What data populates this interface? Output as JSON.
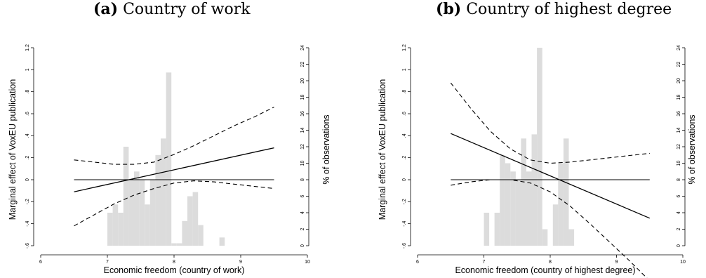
{
  "panels": [
    {
      "letter": "(a)",
      "name": "Country of work"
    },
    {
      "letter": "(b)",
      "name": "Country of highest degree"
    }
  ],
  "chart_data": [
    {
      "type": "line",
      "title": "(a) Country of work",
      "xlabel": "Economic freedom (country of work)",
      "ylabel": "Marginal effect of VoxEU publication",
      "y2label": "% of observations",
      "xlim": [
        6,
        10
      ],
      "ylim": [
        -0.6,
        1.2
      ],
      "y2lim": [
        0,
        24
      ],
      "x_ticks": [
        6,
        7,
        8,
        9,
        10
      ],
      "y_ticks": [
        -0.6,
        -0.4,
        -0.2,
        0,
        0.2,
        0.4,
        0.6,
        0.8,
        1,
        1.2
      ],
      "y_tick_labels": [
        "-.6",
        "-.4",
        "-.2",
        "0",
        ".2",
        ".4",
        ".6",
        ".8",
        "1",
        "1.2"
      ],
      "y2_ticks": [
        0,
        2,
        4,
        6,
        8,
        10,
        12,
        14,
        16,
        18,
        20,
        22,
        24
      ],
      "series": [
        {
          "style": "solid",
          "x": [
            6.5,
            9.5
          ],
          "y": [
            -0.11,
            0.29
          ]
        },
        {
          "style": "dashed",
          "x": [
            6.5,
            6.8,
            7.1,
            7.4,
            7.7,
            8.0,
            8.3,
            8.6,
            8.9,
            9.2,
            9.5
          ],
          "y": [
            -0.42,
            -0.32,
            -0.22,
            -0.14,
            -0.08,
            -0.03,
            -0.01,
            -0.02,
            -0.04,
            -0.06,
            -0.08
          ]
        },
        {
          "style": "dashed",
          "x": [
            6.5,
            6.8,
            7.1,
            7.4,
            7.7,
            8.0,
            8.3,
            8.6,
            8.9,
            9.2,
            9.5
          ],
          "y": [
            0.18,
            0.16,
            0.14,
            0.14,
            0.16,
            0.23,
            0.31,
            0.4,
            0.49,
            0.57,
            0.66
          ]
        },
        {
          "style": "reference",
          "x": [
            6.5,
            9.5
          ],
          "y": [
            0,
            0
          ]
        }
      ],
      "histogram": {
        "bin_width": 0.08,
        "bins_start": [
          7.0,
          7.08,
          7.16,
          7.24,
          7.32,
          7.4,
          7.48,
          7.56,
          7.64,
          7.72,
          7.8,
          7.88,
          7.96,
          8.04,
          8.12,
          8.2,
          8.28,
          8.36,
          8.44,
          8.52,
          8.6,
          8.68
        ],
        "percent": [
          4,
          5,
          4,
          12,
          8,
          9,
          8,
          5,
          8,
          11,
          13,
          21,
          0.3,
          0.3,
          3,
          6,
          6.5,
          2.5,
          0,
          0,
          0,
          1
        ]
      }
    },
    {
      "type": "line",
      "title": "(b) Country of highest degree",
      "xlabel": "Economic freedom (country of highest degree)",
      "ylabel": "Marginal effect of VoxEU publication",
      "y2label": "% of observations",
      "xlim": [
        6,
        10
      ],
      "ylim": [
        -0.6,
        1.2
      ],
      "y2lim": [
        0,
        24
      ],
      "x_ticks": [
        6,
        7,
        8,
        9,
        10
      ],
      "y_ticks": [
        -0.6,
        -0.4,
        -0.2,
        0,
        0.2,
        0.4,
        0.6,
        0.8,
        1,
        1.2
      ],
      "y_tick_labels": [
        "-.6",
        "-.4",
        "-.2",
        "0",
        ".2",
        ".4",
        ".6",
        ".8",
        "1",
        "1.2"
      ],
      "y2_ticks": [
        0,
        2,
        4,
        6,
        8,
        10,
        12,
        14,
        16,
        18,
        20,
        22,
        24
      ],
      "series": [
        {
          "style": "solid",
          "x": [
            6.5,
            9.5
          ],
          "y": [
            0.42,
            -0.35
          ]
        },
        {
          "style": "dashed",
          "x": [
            6.5,
            6.8,
            7.1,
            7.4,
            7.7,
            8.0,
            8.3,
            8.6,
            8.9,
            9.2,
            9.5
          ],
          "y": [
            -0.05,
            -0.02,
            0,
            0,
            -0.03,
            -0.11,
            -0.24,
            -0.4,
            -0.57,
            -0.74,
            -0.92
          ]
        },
        {
          "style": "dashed",
          "x": [
            6.5,
            6.8,
            7.1,
            7.4,
            7.7,
            8.0,
            8.3,
            8.6,
            8.9,
            9.2,
            9.5
          ],
          "y": [
            0.88,
            0.65,
            0.44,
            0.28,
            0.18,
            0.15,
            0.16,
            0.18,
            0.2,
            0.22,
            0.24
          ]
        },
        {
          "style": "reference",
          "x": [
            6.5,
            9.5
          ],
          "y": [
            0,
            0
          ]
        }
      ],
      "histogram": {
        "bin_width": 0.08,
        "bins_start": [
          7.0,
          7.08,
          7.16,
          7.24,
          7.32,
          7.4,
          7.48,
          7.56,
          7.64,
          7.72,
          7.8,
          7.88,
          7.96,
          8.04,
          8.12,
          8.2,
          8.28,
          8.36
        ],
        "percent": [
          4,
          0,
          4,
          11,
          10,
          9,
          8,
          13,
          9,
          13.5,
          24,
          2,
          0,
          5,
          10,
          13,
          2,
          0
        ]
      }
    }
  ]
}
